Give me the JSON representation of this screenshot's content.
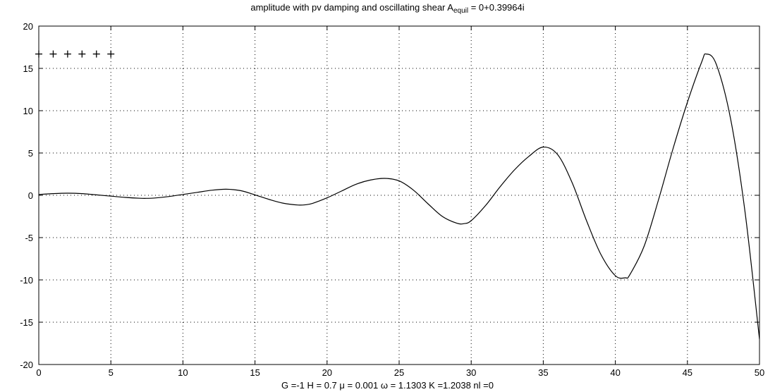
{
  "chart_data": {
    "type": "line",
    "title_main": "amplitude with pv damping and oscillating shear  A",
    "title_sub": "equil",
    "title_tail": " = 0+0.39964i",
    "xlabel": "G =-1  H =  0.7   μ = 0.001  ω = 1.1303  K =1.2038 nl =0",
    "ylabel": "",
    "xlim": [
      0,
      50
    ],
    "ylim": [
      -20,
      20
    ],
    "xticks": [
      0,
      5,
      10,
      15,
      20,
      25,
      30,
      35,
      40,
      45,
      50
    ],
    "yticks": [
      -20,
      -15,
      -10,
      -5,
      0,
      5,
      10,
      15,
      20
    ],
    "grid": true,
    "series": [
      {
        "style": "line",
        "color": "#000000",
        "x": [
          0,
          1,
          2,
          3,
          4,
          5,
          6,
          7,
          7.5,
          8,
          9,
          10,
          11,
          12,
          13,
          14,
          15,
          16,
          17,
          18,
          18.5,
          19,
          20,
          21,
          22,
          23,
          24,
          25,
          26,
          27,
          28,
          29,
          29.5,
          30,
          31,
          32,
          33,
          34,
          35,
          36,
          37,
          38,
          39,
          40,
          40.7,
          41,
          42,
          43,
          44,
          45,
          46,
          46.3,
          47,
          48,
          49,
          50
        ],
        "y": [
          0.1,
          0.2,
          0.25,
          0.2,
          0.05,
          -0.1,
          -0.25,
          -0.35,
          -0.36,
          -0.33,
          -0.15,
          0.1,
          0.35,
          0.6,
          0.72,
          0.55,
          0.05,
          -0.5,
          -0.95,
          -1.15,
          -1.12,
          -0.95,
          -0.3,
          0.5,
          1.3,
          1.8,
          2.0,
          1.7,
          0.6,
          -1.0,
          -2.5,
          -3.3,
          -3.35,
          -3.0,
          -1.2,
          1.0,
          3.0,
          4.6,
          5.7,
          4.8,
          1.5,
          -3.0,
          -7.0,
          -9.5,
          -9.75,
          -9.4,
          -6.0,
          -0.5,
          5.5,
          11.0,
          15.8,
          16.7,
          15.5,
          9.0,
          -2.0,
          -17.0
        ]
      },
      {
        "style": "markers",
        "marker": "+",
        "color": "#000000",
        "x": [
          0,
          1,
          2,
          3,
          4,
          5
        ],
        "y": [
          16.7,
          16.7,
          16.7,
          16.7,
          16.7,
          16.7
        ]
      }
    ]
  }
}
